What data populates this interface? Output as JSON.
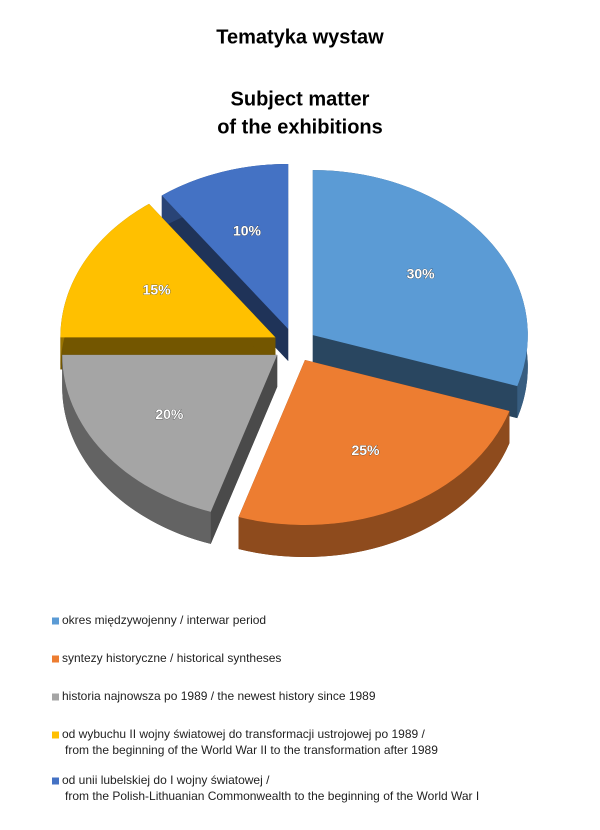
{
  "chart_data": {
    "type": "pie",
    "title": "Tematyka wystaw",
    "subtitle": [
      "Subject matter",
      "of the exhibitions"
    ],
    "categories": [
      [
        "okres międzywojenny / interwar period"
      ],
      [
        "syntezy historyczne / historical syntheses"
      ],
      [
        "historia najnowsza po 1989  / the newest history since 1989"
      ],
      [
        "od wybuchu II wojny światowej do transformacji ustrojowej po 1989 /",
        "from the beginning of the World War II to the transformation after 1989"
      ],
      [
        "od unii lubelskiej do I wojny światowej /",
        "from the Polish-Lithuanian Commonwealth to the beginning of the World War I"
      ]
    ],
    "values": [
      30,
      25,
      20,
      15,
      10
    ],
    "value_labels": [
      "30%",
      "25%",
      "20%",
      "15%",
      "10%"
    ],
    "colors": [
      "#5b9bd5",
      "#ed7d31",
      "#a5a5a5",
      "#ffc000",
      "#4472c4"
    ]
  }
}
